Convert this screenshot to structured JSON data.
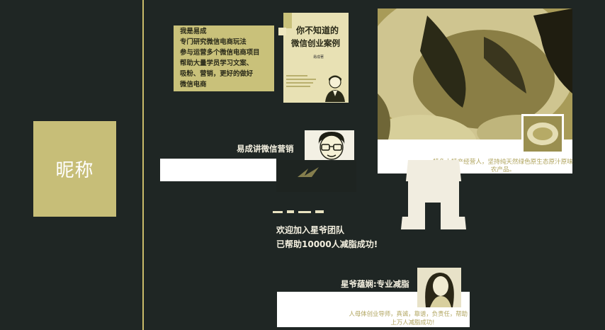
{
  "nickname": "昵称",
  "intro": {
    "lines": [
      "我是易成",
      "专门研究微信电商玩法",
      "参与运营多个微信电商项目",
      "帮助大量学员学习文案、",
      "吸粉、营销，更好的做好",
      "微信电商"
    ]
  },
  "book": {
    "title_line1": "你不知道的",
    "title_line2": "微信创业案例",
    "author": "易成著"
  },
  "food": {
    "caption": "特色土特产经营人，坚持纯天然绿色原生态原汁原味农产品。"
  },
  "yichang": {
    "label": "易成讲微信营销"
  },
  "xingye_team": {
    "line1": "欢迎加入星爷团队",
    "line2": "已帮助10000人减脂成功!"
  },
  "yunxian": {
    "label": "星爷蕴娴:专业减脂",
    "desc_line1": "人母体创业导师，真诚，靠谱，负责任，帮助",
    "desc_line2": "上万人减脂成功!"
  },
  "colors": {
    "background": "#1f2624",
    "accent": "#c7be78",
    "caption_text": "#b0a45e"
  }
}
